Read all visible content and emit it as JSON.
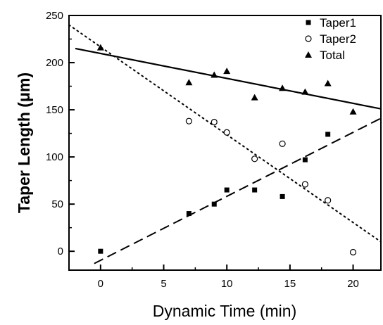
{
  "chart_data": {
    "type": "scatter",
    "xlabel": "Dynamic Time (min)",
    "ylabel": "Taper Length (μm)",
    "xlim": [
      -2.5,
      22.2
    ],
    "ylim": [
      -20,
      250
    ],
    "xticks": [
      0,
      5,
      10,
      15,
      20
    ],
    "yticks": [
      0,
      50,
      100,
      150,
      200,
      250
    ],
    "grid": false,
    "legend_position": "top-right",
    "series": [
      {
        "name": "Taper1",
        "marker": "filled-square",
        "x": [
          0,
          7,
          9,
          10,
          12.2,
          14.4,
          16.2,
          18
        ],
        "y": [
          0,
          40,
          50,
          65,
          65,
          58,
          97,
          124
        ],
        "fit": {
          "style": "dashed",
          "x": [
            -0.5,
            22.2
          ],
          "y": [
            -13,
            141
          ]
        }
      },
      {
        "name": "Taper2",
        "marker": "open-circle",
        "x": [
          7,
          9,
          10,
          12.2,
          14.4,
          16.2,
          18,
          20
        ],
        "y": [
          138,
          137,
          126,
          98,
          114,
          71,
          54,
          -1
        ],
        "fit": {
          "style": "dotted",
          "x": [
            -2.5,
            22.2
          ],
          "y": [
            240,
            10
          ]
        }
      },
      {
        "name": "Total",
        "marker": "filled-triangle",
        "x": [
          0,
          7,
          9,
          10,
          12.2,
          14.4,
          16.2,
          18,
          20
        ],
        "y": [
          216,
          179,
          187,
          191,
          163,
          173,
          169,
          178,
          148
        ],
        "fit": {
          "style": "solid",
          "x": [
            -2,
            22.2
          ],
          "y": [
            215,
            151
          ]
        }
      }
    ]
  }
}
